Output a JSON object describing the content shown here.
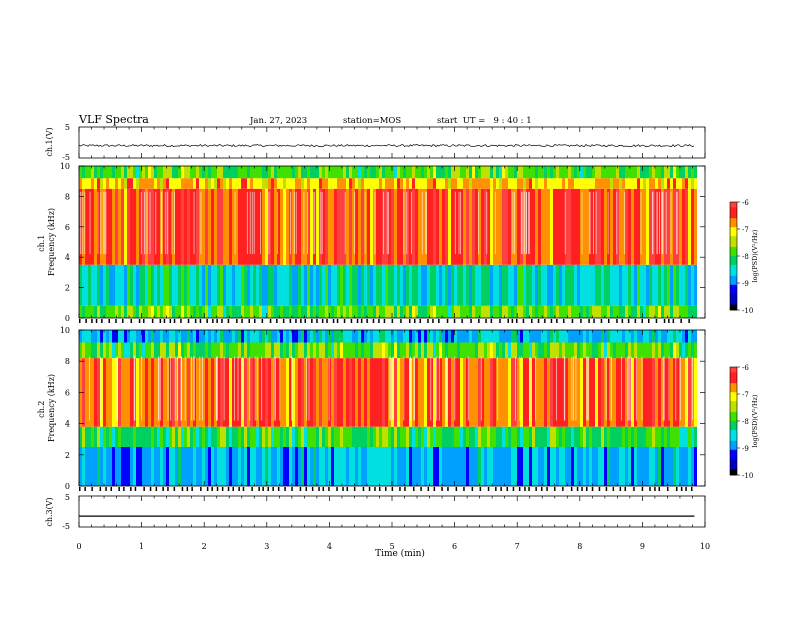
{
  "header": {
    "title": "VLF Spectra",
    "date": "Jan. 27, 2023",
    "station": "station=MOS",
    "start_ut": "start  UT =   9 : 40 : 1"
  },
  "chart_data": [
    {
      "type": "line",
      "panel": "ch1-waveform",
      "ylabel": "ch.1(V)",
      "ylim": [
        -5,
        5
      ],
      "y_ticks": [
        "5",
        "-5"
      ],
      "xlim": [
        0,
        10
      ],
      "series": [
        {
          "values_description": "noise-like trace centered near -1 V",
          "mean": -1,
          "amplitude": 0.35
        }
      ]
    },
    {
      "type": "heatmap",
      "panel": "ch1-spectrogram",
      "ylabel": "ch.1\nFrequency (kHz)",
      "ylim": [
        0,
        10
      ],
      "y_ticks": [
        "0",
        "2",
        "4",
        "6",
        "8",
        "10"
      ],
      "xlim": [
        0,
        10
      ],
      "colorbar": {
        "label": "log(PSD)(V²/Hz)",
        "ticks": [
          "-6",
          "-7",
          "-8",
          "-9",
          "-10"
        ],
        "range": [
          -10,
          -6
        ]
      },
      "bands": [
        {
          "fmin": 0.0,
          "fmax": 0.8,
          "level": -7.8
        },
        {
          "fmin": 0.8,
          "fmax": 3.5,
          "level": -8.4
        },
        {
          "fmin": 3.5,
          "fmax": 8.5,
          "level": -6.4
        },
        {
          "fmin": 8.5,
          "fmax": 9.2,
          "level": -6.9
        },
        {
          "fmin": 9.2,
          "fmax": 10.0,
          "level": -7.8
        }
      ]
    },
    {
      "type": "heatmap",
      "panel": "ch2-spectrogram",
      "ylabel": "ch.2\nFrequency (kHz)",
      "ylim": [
        0,
        10
      ],
      "y_ticks": [
        "0",
        "2",
        "4",
        "6",
        "8",
        "10"
      ],
      "xlim": [
        0,
        10
      ],
      "colorbar": {
        "label": "log(PSD)(V²/Hz)",
        "ticks": [
          "-6",
          "-7",
          "-8",
          "-9",
          "-10"
        ],
        "range": [
          -10,
          -6
        ]
      },
      "bands": [
        {
          "fmin": 0.0,
          "fmax": 2.5,
          "level": -8.8
        },
        {
          "fmin": 2.5,
          "fmax": 3.8,
          "level": -8.0
        },
        {
          "fmin": 3.8,
          "fmax": 8.2,
          "level": -6.5
        },
        {
          "fmin": 8.2,
          "fmax": 9.2,
          "level": -7.8
        },
        {
          "fmin": 9.2,
          "fmax": 10.0,
          "level": -8.7
        }
      ]
    },
    {
      "type": "line",
      "panel": "ch3-waveform",
      "ylabel": "ch.3(V)",
      "ylim": [
        -5,
        5
      ],
      "y_ticks": [
        "5",
        "-5"
      ],
      "xlim": [
        0,
        10
      ],
      "series": [
        {
          "values_description": "flat trace",
          "mean": -1.5,
          "amplitude": 0
        }
      ]
    }
  ],
  "x_axis": {
    "label": "Time (min)",
    "ticks": [
      "0",
      "1",
      "2",
      "3",
      "4",
      "5",
      "6",
      "7",
      "8",
      "9",
      "10"
    ],
    "data_end": 9.83
  },
  "colors": {
    "colormap": [
      "#000000",
      "#0000c0",
      "#0000ff",
      "#00a0ff",
      "#00e0e0",
      "#00d060",
      "#40e000",
      "#c0e000",
      "#ffff00",
      "#ff9000",
      "#ff2020",
      "#ff4040",
      "#ffffff"
    ]
  }
}
